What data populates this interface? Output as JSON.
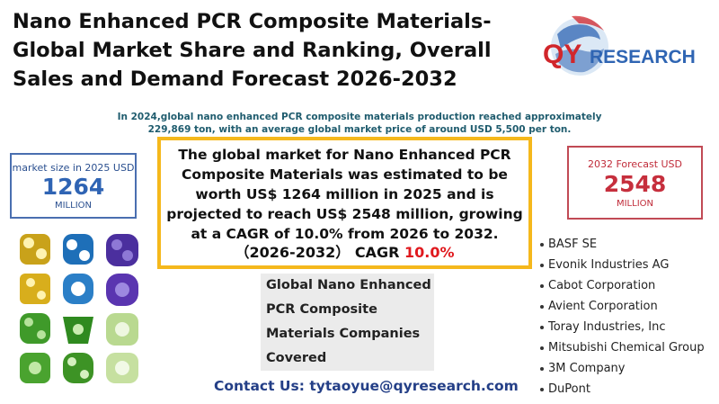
{
  "title": {
    "line1": "Nano Enhanced PCR Composite Materials-",
    "line2": "Global Market Share and Ranking, Overall",
    "line3": "Sales and Demand Forecast 2026-2032"
  },
  "logo": {
    "brand_qy": "QY",
    "brand_research": "RESEARCH"
  },
  "intro": {
    "line1": "In 2024,global nano enhanced PCR composite materials production reached approximately",
    "line2": "229,869 ton, with an average global market price of around USD 5,500 per ton."
  },
  "market_size": {
    "label": "market size in 2025 USD",
    "value": "1264",
    "unit": "MILLION"
  },
  "forecast": {
    "label": "2032 Forecast  USD",
    "value": "2548",
    "unit": "MILLION"
  },
  "summary": {
    "text": "The global market for Nano Enhanced PCR Composite Materials was estimated to be worth US$ 1264 million in 2025 and is projected to reach US$ 2548 million, growing at a CAGR of 10.0% from 2026 to 2032.",
    "period": "（2026-2032）",
    "cagr_label": "CAGR",
    "cagr_value": "10.0%"
  },
  "companies_box": {
    "line1": "Global Nano Enhanced",
    "line2": "PCR Composite",
    "line3": "Materials Companies",
    "line4": "Covered"
  },
  "companies": [
    "BASF SE",
    "Evonik Industries AG",
    "Cabot Corporation",
    "Avient Corporation",
    "Toray Industries, Inc",
    "Mitsubishi Chemical Group",
    "3M Company",
    "DuPont"
  ],
  "contact": "Contact Us: tytaoyue@qyresearch.com",
  "colors": {
    "left_box": "#4a6fb0",
    "right_box": "#c14a55",
    "main_border": "#f5b81c",
    "cagr_red": "#e0191e",
    "logo_red": "#d1262b",
    "logo_blue": "#2f65b3"
  }
}
